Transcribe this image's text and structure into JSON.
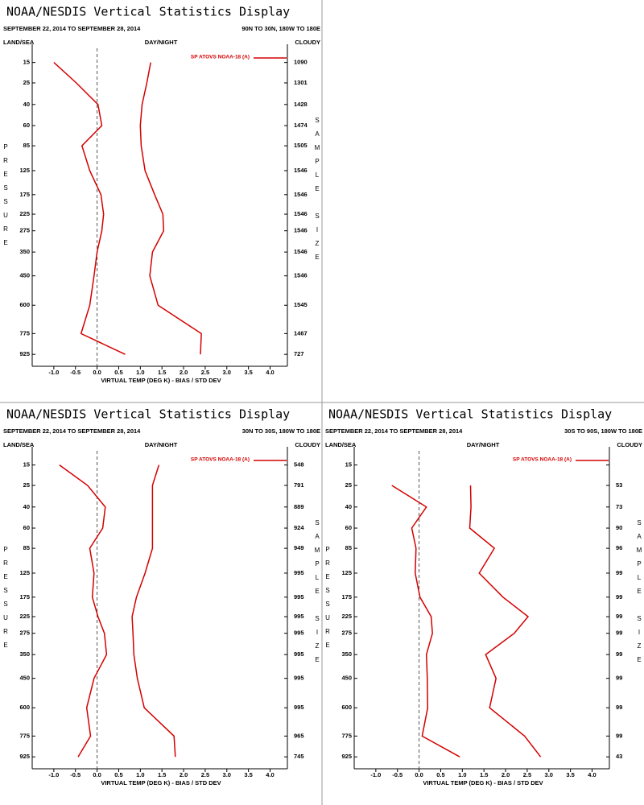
{
  "chart_data": [
    {
      "type": "line",
      "title": "NOAA/NESDIS Vertical Statistics Display",
      "subtitle": "SEPTEMBER 22, 2014 TO SEPTEMBER 28, 2014",
      "region": "90N TO 30N, 180W TO 180E",
      "land_sea": "LAND/SEA",
      "day_night": "DAY/NIGHT",
      "cloud": "CLOUDY",
      "ylabel": "PRESSURE",
      "y2label": "SAMPLE SIZE",
      "xlabel": "VIRTUAL TEMP (DEG K) - BIAS / STD DEV",
      "y": [
        15,
        25,
        40,
        60,
        85,
        125,
        175,
        225,
        275,
        350,
        450,
        600,
        775,
        925
      ],
      "series": [
        {
          "name": "SP ATOVS NOAA-18 (A)",
          "color": "#d40000",
          "values": [
            -1.0,
            -0.48,
            0.02,
            0.11,
            -0.35,
            -0.17,
            0.09,
            0.15,
            0.11,
            0.0,
            -0.07,
            -0.17,
            -0.37,
            0.65
          ]
        },
        {
          "color": "#d40000",
          "values": [
            1.24,
            1.15,
            1.04,
            1.0,
            1.02,
            1.11,
            1.33,
            1.52,
            1.54,
            1.28,
            1.22,
            1.41,
            2.41,
            2.39
          ]
        }
      ],
      "sample_size": [
        1090,
        1301,
        1428,
        1474,
        1505,
        1546,
        1546,
        1546,
        1546,
        1546,
        1546,
        1545,
        1467,
        727
      ],
      "xlim": [
        -1.5,
        4.4
      ],
      "xticks": [
        {
          "value": -1,
          "label": "-1.0"
        },
        -0.5,
        {
          "value": 0,
          "label": "0.0"
        },
        0.5,
        {
          "value": 1,
          "label": "1.0"
        },
        1.5,
        {
          "value": 2,
          "label": "2.0"
        },
        2.5,
        {
          "value": 3,
          "label": "3.0"
        },
        3.5,
        {
          "value": 4,
          "label": "4.0"
        }
      ],
      "ylim": [
        10,
        1000
      ],
      "yticks": [
        15,
        25,
        40,
        60,
        85,
        125,
        175,
        225,
        275,
        350,
        450,
        600,
        775,
        925
      ],
      "yscale": "power",
      "yinverted": true
    },
    {
      "type": "line",
      "title": "NOAA/NESDIS Vertical Statistics Display",
      "subtitle": "SEPTEMBER 22, 2014 TO SEPTEMBER 28, 2014",
      "region": "30N TO 30S, 180W TO 180E",
      "land_sea": "LAND/SEA",
      "day_night": "DAY/NIGHT",
      "cloud": "CLOUDY",
      "ylabel": "PRESSURE",
      "y2label": "SAMPLE SIZE",
      "xlabel": "VIRTUAL TEMP (DEG K) - BIAS / STD DEV",
      "y": [
        15,
        25,
        40,
        60,
        85,
        125,
        175,
        225,
        275,
        350,
        450,
        600,
        775,
        925
      ],
      "series": [
        {
          "name": "SP ATOVS NOAA-18 (A)",
          "color": "#d40000",
          "values": [
            -0.87,
            -0.22,
            0.19,
            0.13,
            -0.17,
            -0.07,
            -0.11,
            0.02,
            0.17,
            0.22,
            -0.07,
            -0.24,
            -0.15,
            -0.44
          ]
        },
        {
          "color": "#d40000",
          "values": [
            1.43,
            1.28,
            1.28,
            1.28,
            1.28,
            1.11,
            0.91,
            0.81,
            0.83,
            0.85,
            0.93,
            1.09,
            1.78,
            1.81
          ]
        }
      ],
      "sample_size": [
        548,
        791,
        889,
        924,
        949,
        995,
        995,
        995,
        995,
        995,
        995,
        995,
        965,
        745
      ],
      "xlim": [
        -1.5,
        4.4
      ],
      "xticks": [
        {
          "value": -1,
          "label": "-1.0"
        },
        -0.5,
        {
          "value": 0,
          "label": "0.0"
        },
        0.5,
        {
          "value": 1,
          "label": "1.0"
        },
        1.5,
        {
          "value": 2,
          "label": "2.0"
        },
        2.5,
        {
          "value": 3,
          "label": "3.0"
        },
        3.5,
        {
          "value": 4,
          "label": "4.0"
        }
      ],
      "ylim": [
        10,
        1000
      ],
      "yticks": [
        15,
        25,
        40,
        60,
        85,
        125,
        175,
        225,
        275,
        350,
        450,
        600,
        775,
        925
      ],
      "yscale": "power",
      "yinverted": true
    },
    {
      "type": "line",
      "title": "NOAA/NESDIS Vertical Statistics Display",
      "subtitle": "SEPTEMBER 22, 2014 TO SEPTEMBER 28, 2014",
      "region": "30S TO 90S, 180W TO 180E",
      "land_sea": "LAND/SEA",
      "day_night": "DAY/NIGHT",
      "cloud": "CLOUDY",
      "ylabel": "PRESSURE",
      "y2label": "SAMPLE SIZE",
      "xlabel": "VIRTUAL TEMP (DEG K) - BIAS / STD DEV",
      "y": [
        15,
        25,
        40,
        60,
        85,
        125,
        175,
        225,
        275,
        350,
        450,
        600,
        775,
        925
      ],
      "series": [
        {
          "name": "SP ATOVS NOAA-18 (A)",
          "color": "#d40000",
          "values": [
            null,
            -0.63,
            0.17,
            -0.17,
            -0.07,
            -0.09,
            0.02,
            0.28,
            0.31,
            0.17,
            0.19,
            0.2,
            0.07,
            0.94
          ]
        },
        {
          "color": "#d40000",
          "values": [
            null,
            1.19,
            1.2,
            1.17,
            1.74,
            1.39,
            1.94,
            2.52,
            2.2,
            1.54,
            1.78,
            1.63,
            2.44,
            2.81
          ]
        }
      ],
      "sample_size": [
        null,
        53,
        73,
        90,
        96,
        99,
        99,
        99,
        99,
        99,
        99,
        99,
        99,
        43
      ],
      "xlim": [
        -1.5,
        4.4
      ],
      "xticks": [
        {
          "value": -1,
          "label": "-1.0"
        },
        -0.5,
        {
          "value": 0,
          "label": "0.0"
        },
        0.5,
        {
          "value": 1,
          "label": "1.0"
        },
        1.5,
        {
          "value": 2,
          "label": "2.0"
        },
        2.5,
        {
          "value": 3,
          "label": "3.0"
        },
        3.5,
        {
          "value": 4,
          "label": "4.0"
        }
      ],
      "ylim": [
        10,
        1000
      ],
      "yticks": [
        15,
        25,
        40,
        60,
        85,
        125,
        175,
        225,
        275,
        350,
        450,
        600,
        775,
        925
      ],
      "yscale": "power",
      "yinverted": true
    }
  ]
}
